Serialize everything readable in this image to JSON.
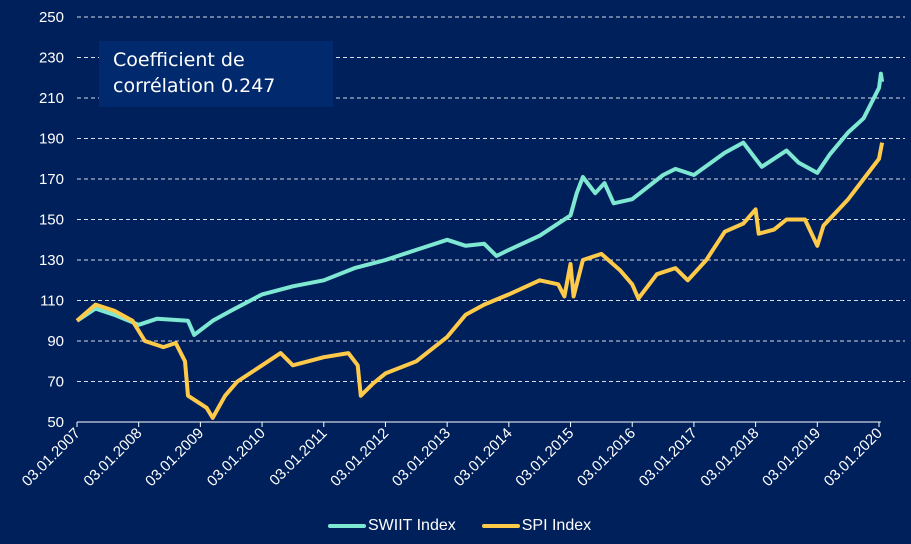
{
  "chart_data": {
    "type": "line",
    "title": "",
    "annotation": {
      "line1": "Coefficient de",
      "line2": "corrélation 0.247"
    },
    "xlabel": "",
    "ylabel": "",
    "ylim": [
      50,
      250
    ],
    "yticks": [
      50,
      70,
      90,
      110,
      130,
      150,
      170,
      190,
      210,
      230,
      250
    ],
    "xlim": [
      2007.0,
      2020.05
    ],
    "xticks": [
      {
        "value": 2007,
        "label": "03.01.2007"
      },
      {
        "value": 2008,
        "label": "03.01.2008"
      },
      {
        "value": 2009,
        "label": "03.01.2009"
      },
      {
        "value": 2010,
        "label": "03.01.2010"
      },
      {
        "value": 2011,
        "label": "03.01.2011"
      },
      {
        "value": 2012,
        "label": "03.01.2012"
      },
      {
        "value": 2013,
        "label": "03.01.2013"
      },
      {
        "value": 2014,
        "label": "03.01.2014"
      },
      {
        "value": 2015,
        "label": "03.01.2015"
      },
      {
        "value": 2016,
        "label": "03.01.2016"
      },
      {
        "value": 2017,
        "label": "03.01.2017"
      },
      {
        "value": 2018,
        "label": "03.01.2018"
      },
      {
        "value": 2019,
        "label": "03.01.2019"
      },
      {
        "value": 2020,
        "label": "03.01.2020"
      }
    ],
    "grid": true,
    "legend_position": "bottom",
    "series": [
      {
        "name": "SWIIT Index",
        "color": "#7ee8d2",
        "x": [
          2007.0,
          2007.3,
          2007.6,
          2008.0,
          2008.3,
          2008.8,
          2008.9,
          2009.2,
          2009.5,
          2010.0,
          2010.5,
          2011.0,
          2011.5,
          2012.0,
          2012.5,
          2013.0,
          2013.3,
          2013.6,
          2013.8,
          2014.0,
          2014.5,
          2015.0,
          2015.1,
          2015.2,
          2015.4,
          2015.55,
          2015.7,
          2016.0,
          2016.5,
          2016.7,
          2017.0,
          2017.5,
          2017.8,
          2018.0,
          2018.1,
          2018.5,
          2018.7,
          2019.0,
          2019.2,
          2019.5,
          2019.75,
          2020.0,
          2020.03,
          2020.05
        ],
        "values": [
          100,
          106,
          103,
          98,
          101,
          100,
          93,
          100,
          105,
          113,
          117,
          120,
          126,
          130,
          135,
          140,
          137,
          138,
          132,
          135,
          142,
          152,
          163,
          171,
          163,
          168,
          158,
          160,
          172,
          175,
          172,
          183,
          188,
          180,
          176,
          184,
          178,
          173,
          182,
          193,
          200,
          215,
          222,
          218
        ]
      },
      {
        "name": "SPI Index",
        "color": "#ffc94a",
        "x": [
          2007.0,
          2007.3,
          2007.6,
          2007.9,
          2008.1,
          2008.4,
          2008.6,
          2008.75,
          2008.8,
          2009.1,
          2009.2,
          2009.4,
          2009.6,
          2010.0,
          2010.3,
          2010.5,
          2011.0,
          2011.4,
          2011.55,
          2011.6,
          2011.8,
          2012.0,
          2012.5,
          2013.0,
          2013.3,
          2013.6,
          2014.0,
          2014.5,
          2014.8,
          2014.9,
          2015.0,
          2015.05,
          2015.2,
          2015.5,
          2015.8,
          2016.0,
          2016.1,
          2016.4,
          2016.7,
          2016.9,
          2017.2,
          2017.5,
          2017.8,
          2018.0,
          2018.05,
          2018.3,
          2018.5,
          2018.8,
          2019.0,
          2019.1,
          2019.5,
          2019.75,
          2020.0,
          2020.05
        ],
        "values": [
          100,
          108,
          105,
          100,
          90,
          87,
          89,
          80,
          63,
          57,
          52,
          63,
          70,
          78,
          84,
          78,
          82,
          84,
          78,
          63,
          69,
          74,
          80,
          92,
          103,
          108,
          113,
          120,
          118,
          112,
          128,
          112,
          130,
          133,
          125,
          118,
          111,
          123,
          126,
          120,
          130,
          144,
          148,
          155,
          143,
          145,
          150,
          150,
          137,
          147,
          160,
          170,
          180,
          188
        ]
      }
    ]
  }
}
